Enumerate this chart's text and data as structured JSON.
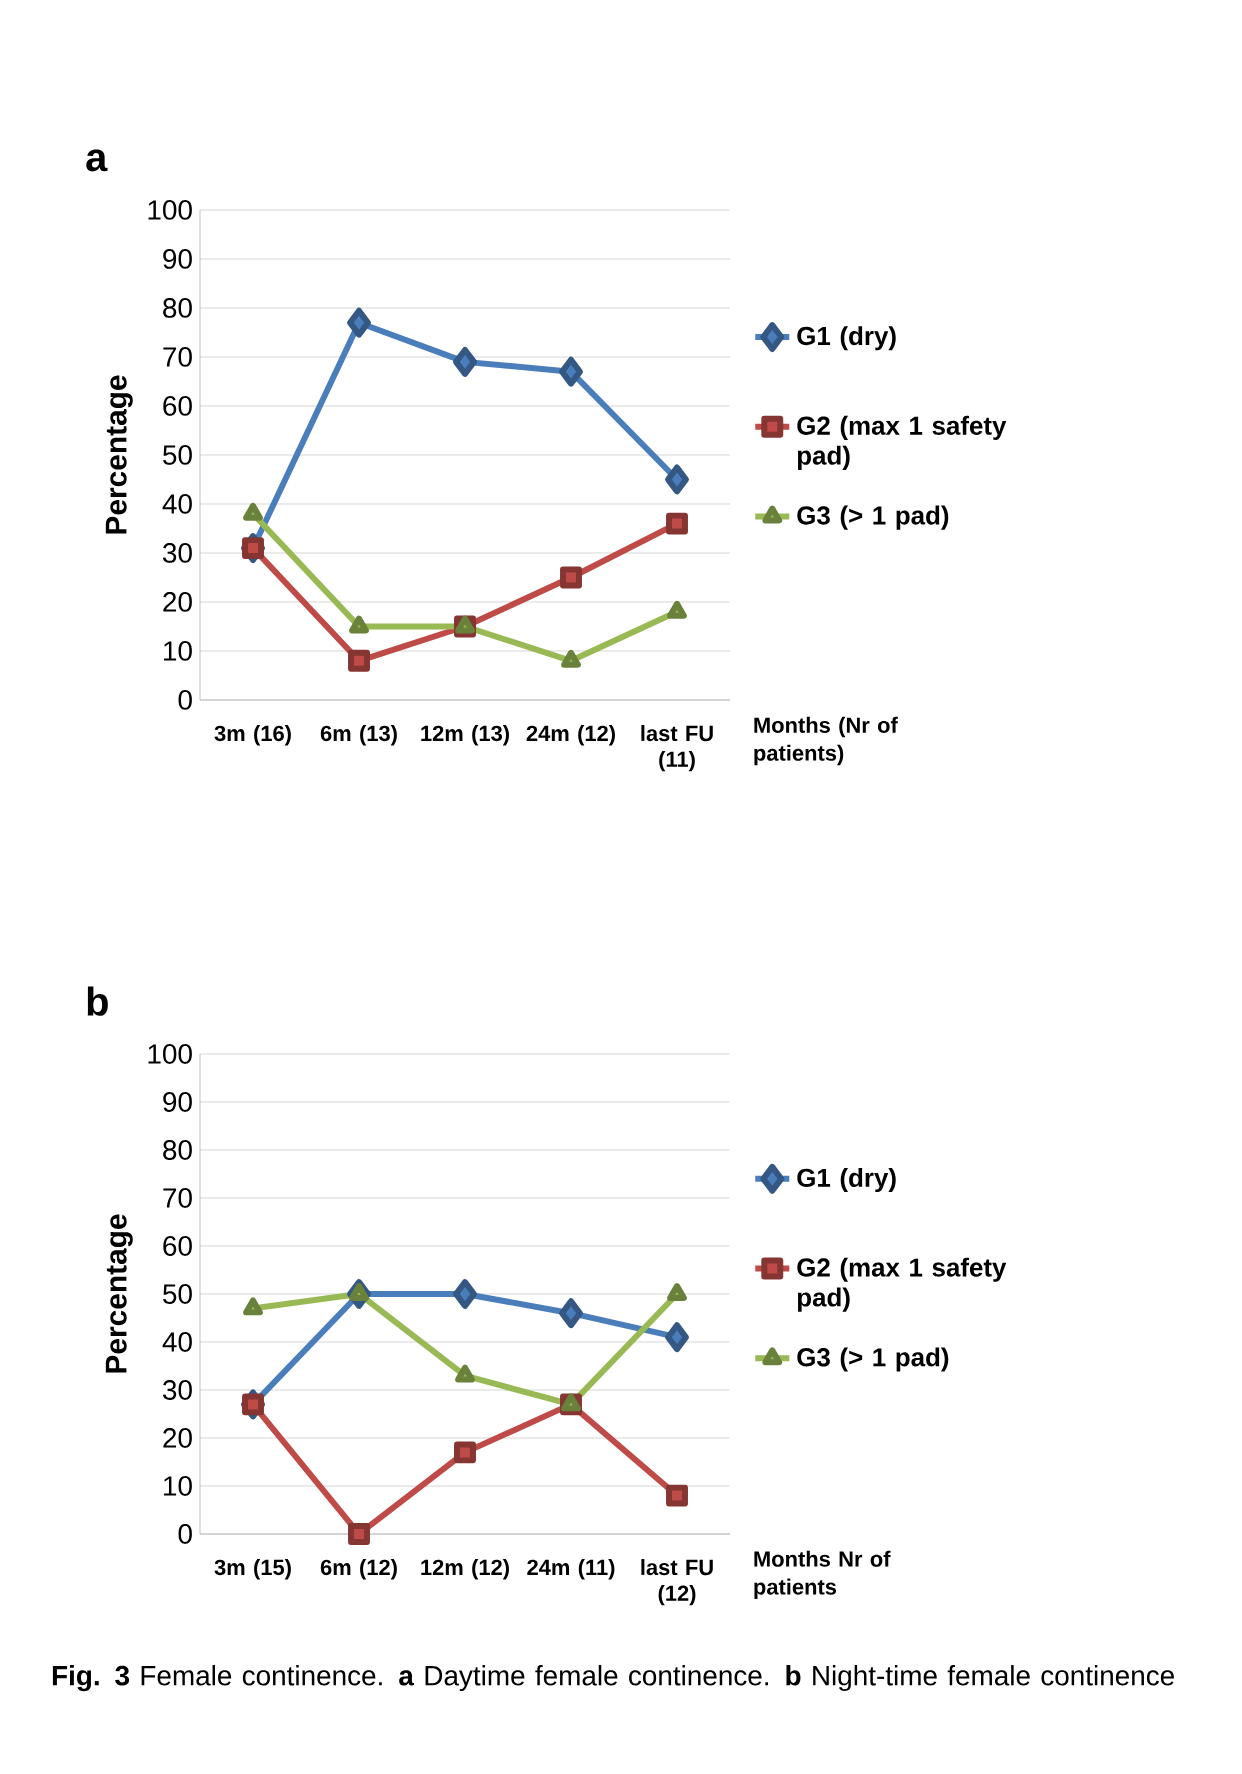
{
  "chart_data": [
    {
      "type": "line",
      "title": "a",
      "ylabel": "Percentage",
      "xlabel": "Months (Nr of patients)",
      "categories": [
        "3m (16)",
        "6m (13)",
        "12m (13)",
        "24m (12)",
        "last FU (11)"
      ],
      "series": [
        {
          "name": "G1 (dry)",
          "color": "#4a7ebb",
          "marker": "diamond",
          "values": [
            31,
            77,
            69,
            67,
            45
          ]
        },
        {
          "name": "G2 (max 1 safety pad)",
          "color": "#be4b48",
          "marker": "square",
          "values": [
            31,
            8,
            15,
            25,
            36
          ]
        },
        {
          "name": "G3 (> 1 pad)",
          "color": "#98b954",
          "marker": "triangle",
          "values": [
            38,
            15,
            15,
            8,
            18
          ]
        }
      ],
      "ylim": [
        0,
        100
      ],
      "yticks": [
        0,
        10,
        20,
        30,
        40,
        50,
        60,
        70,
        80,
        90,
        100
      ],
      "grid": "y",
      "legend": "right"
    },
    {
      "type": "line",
      "title": "b",
      "ylabel": "Percentage",
      "xlabel": "Months Nr of patients",
      "categories": [
        "3m (15)",
        "6m (12)",
        "12m (12)",
        "24m (11)",
        "last FU (12)"
      ],
      "series": [
        {
          "name": "G1 (dry)",
          "color": "#4a7ebb",
          "marker": "diamond",
          "values": [
            27,
            50,
            50,
            46,
            41
          ]
        },
        {
          "name": "G2 (max 1 safety pad)",
          "color": "#be4b48",
          "marker": "square",
          "values": [
            27,
            0,
            17,
            27,
            8
          ]
        },
        {
          "name": "G3 (> 1 pad)",
          "color": "#98b954",
          "marker": "triangle",
          "values": [
            47,
            50,
            33,
            27,
            50
          ]
        }
      ],
      "ylim": [
        0,
        100
      ],
      "yticks": [
        0,
        10,
        20,
        30,
        40,
        50,
        60,
        70,
        80,
        90,
        100
      ],
      "grid": "y",
      "legend": "right",
      "annotations": [
        "**Fig. 3** Female continence. **a** Daytime female continence. **b** Night-time female continence"
      ]
    }
  ]
}
